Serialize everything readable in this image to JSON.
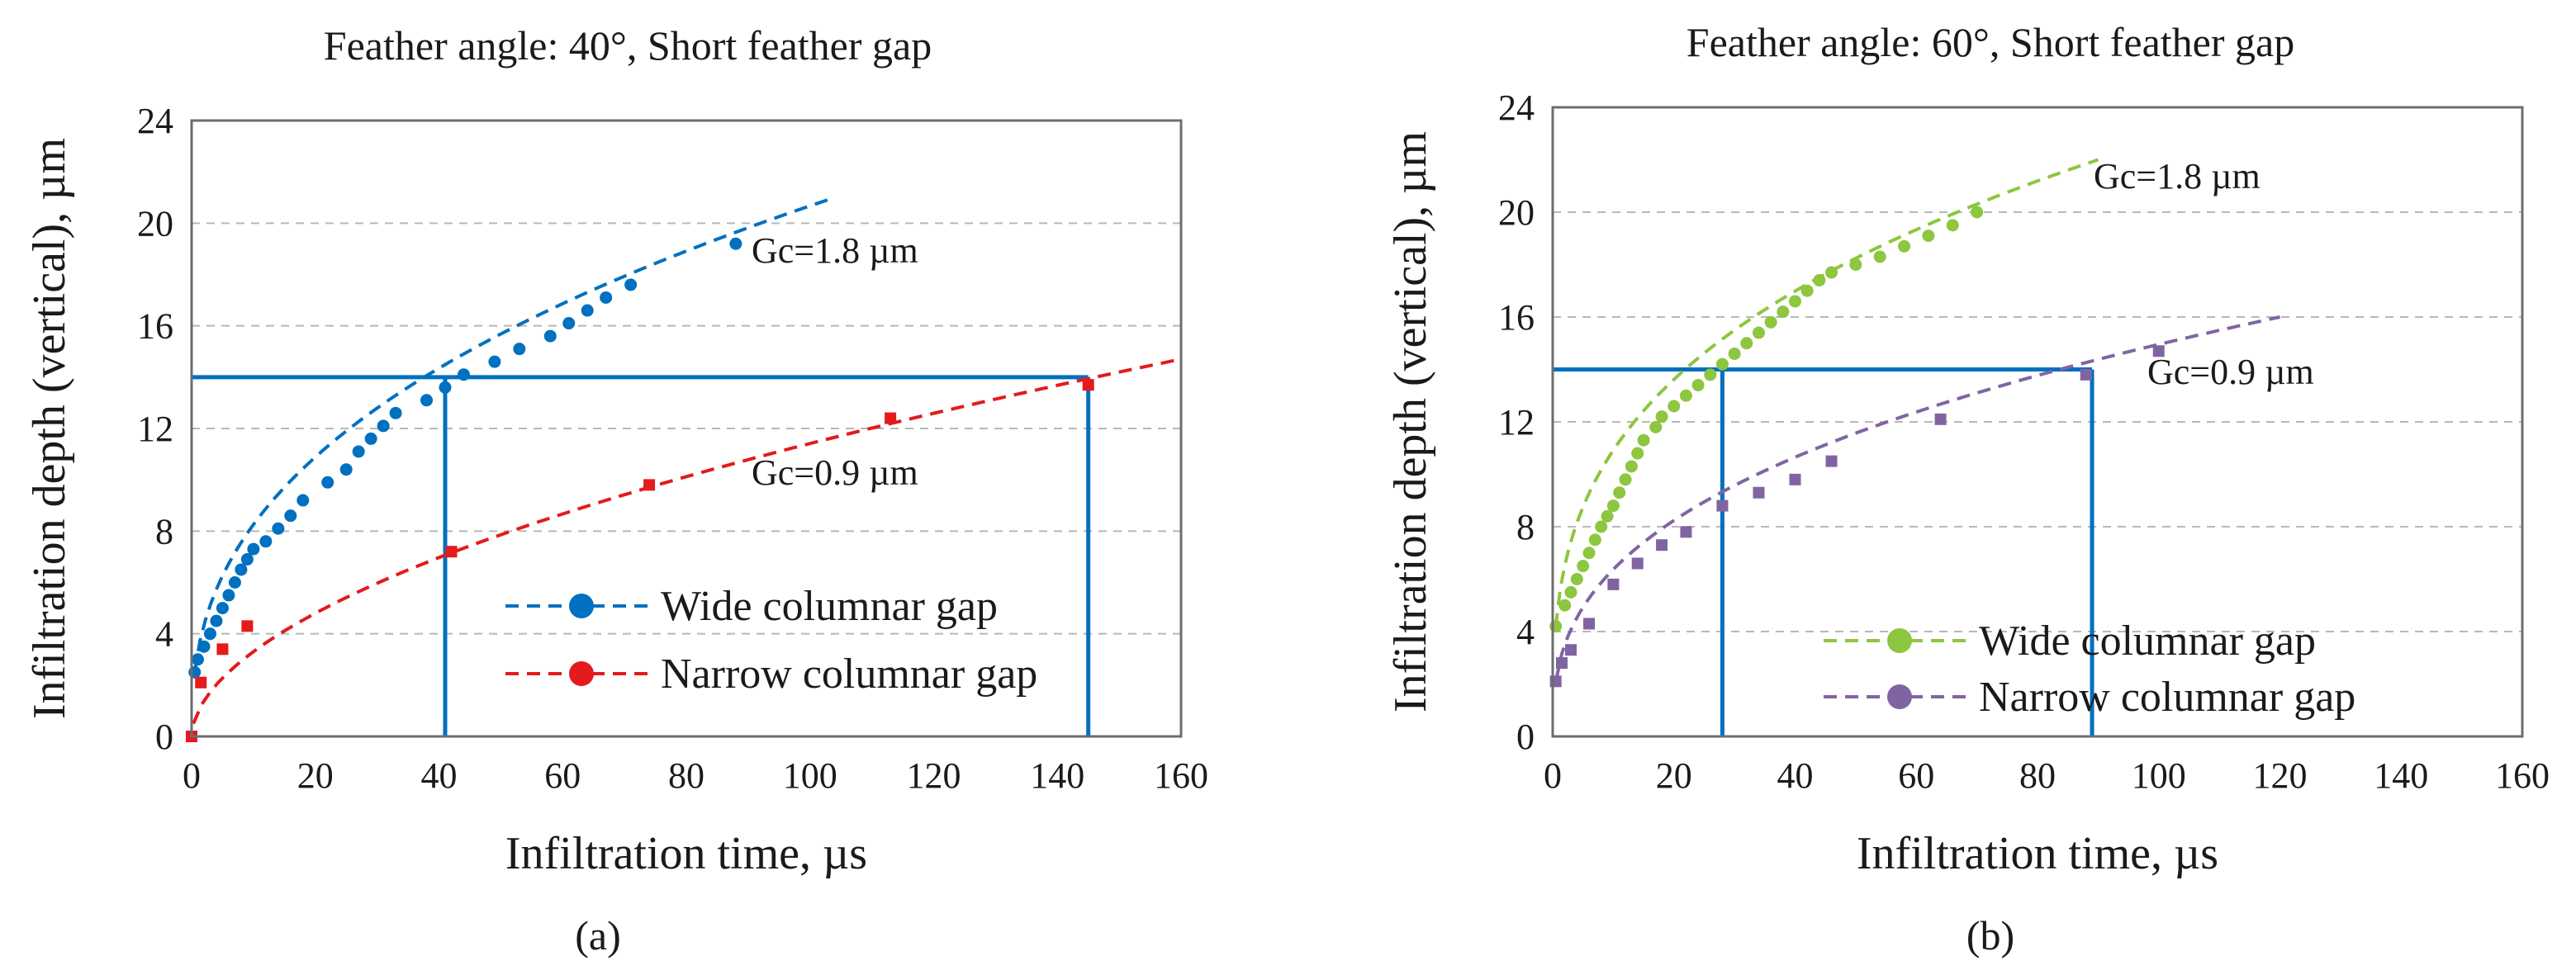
{
  "chart_data": [
    {
      "type": "scatter",
      "panel": "(a)",
      "title": "Feather angle: 40°, Short feather gap",
      "xlabel": "Infiltration time, µs",
      "ylabel": "Infiltration depth (vertical), µm",
      "xlim": [
        0,
        160
      ],
      "ylim": [
        0,
        24
      ],
      "xticks": [
        0,
        20,
        40,
        60,
        80,
        100,
        120,
        140,
        160
      ],
      "yticks": [
        0,
        4,
        8,
        12,
        16,
        20,
        24
      ],
      "grid": "horizontal dashed",
      "legend_position": "bottom-right",
      "series": [
        {
          "name": "Wide columnar gap",
          "color": "#0070c0",
          "marker": "circle",
          "points": [
            [
              0.5,
              2.5
            ],
            [
              1,
              3.0
            ],
            [
              2,
              3.5
            ],
            [
              3,
              4.0
            ],
            [
              4,
              4.5
            ],
            [
              5,
              5.0
            ],
            [
              6,
              5.5
            ],
            [
              7,
              6.0
            ],
            [
              8,
              6.5
            ],
            [
              9,
              6.9
            ],
            [
              10,
              7.3
            ],
            [
              12,
              7.6
            ],
            [
              14,
              8.1
            ],
            [
              16,
              8.6
            ],
            [
              18,
              9.2
            ],
            [
              22,
              9.9
            ],
            [
              25,
              10.4
            ],
            [
              27,
              11.1
            ],
            [
              29,
              11.6
            ],
            [
              31,
              12.1
            ],
            [
              33,
              12.6
            ],
            [
              38,
              13.1
            ],
            [
              41,
              13.6
            ],
            [
              44,
              14.1
            ],
            [
              49,
              14.6
            ],
            [
              53,
              15.1
            ],
            [
              58,
              15.6
            ],
            [
              61,
              16.1
            ],
            [
              64,
              16.6
            ],
            [
              67,
              17.1
            ],
            [
              71,
              17.6
            ],
            [
              88,
              19.2
            ]
          ],
          "fit": {
            "x_end": 104,
            "y_end": 21.0,
            "style": "dashed"
          }
        },
        {
          "name": "Narrow columnar gap",
          "color": "#e41a1c",
          "marker": "square",
          "points": [
            [
              0,
              0
            ],
            [
              1.5,
              2.1
            ],
            [
              5,
              3.4
            ],
            [
              9,
              4.3
            ],
            [
              42,
              7.2
            ],
            [
              74,
              9.8
            ],
            [
              113,
              12.4
            ],
            [
              145,
              13.7
            ]
          ],
          "fit": {
            "x_end": 160,
            "y_end": 14.7,
            "style": "dashed"
          }
        }
      ],
      "reference_lines": {
        "color": "#0070c0",
        "depth": 14,
        "time_wide": 41,
        "time_narrow": 145
      },
      "annotations": [
        {
          "text": "Gc=1.8 µm",
          "x": 97,
          "y": 18.0
        },
        {
          "text": "Gc=0.9 µm",
          "x": 97,
          "y": 9.5
        }
      ]
    },
    {
      "type": "scatter",
      "panel": "(b)",
      "title": "Feather angle: 60°, Short feather gap",
      "xlabel": "Infiltration time, µs",
      "ylabel": "Infiltration depth (vertical), µm",
      "xlim": [
        0,
        160
      ],
      "ylim": [
        0,
        24
      ],
      "xticks": [
        0,
        20,
        40,
        60,
        80,
        100,
        120,
        140,
        160
      ],
      "yticks": [
        0,
        4,
        8,
        12,
        16,
        20,
        24
      ],
      "grid": "horizontal dashed",
      "legend_position": "bottom-right",
      "series": [
        {
          "name": "Wide columnar gap",
          "color": "#8dc63f",
          "marker": "circle",
          "points": [
            [
              0.5,
              4.2
            ],
            [
              2,
              5.0
            ],
            [
              3,
              5.5
            ],
            [
              4,
              6.0
            ],
            [
              5,
              6.5
            ],
            [
              6,
              7.0
            ],
            [
              7,
              7.5
            ],
            [
              8,
              8.0
            ],
            [
              9,
              8.4
            ],
            [
              10,
              8.8
            ],
            [
              11,
              9.3
            ],
            [
              12,
              9.8
            ],
            [
              13,
              10.3
            ],
            [
              14,
              10.8
            ],
            [
              15,
              11.3
            ],
            [
              17,
              11.8
            ],
            [
              18,
              12.2
            ],
            [
              20,
              12.6
            ],
            [
              22,
              13.0
            ],
            [
              24,
              13.4
            ],
            [
              26,
              13.8
            ],
            [
              28,
              14.2
            ],
            [
              30,
              14.6
            ],
            [
              32,
              15.0
            ],
            [
              34,
              15.4
            ],
            [
              36,
              15.8
            ],
            [
              38,
              16.2
            ],
            [
              40,
              16.6
            ],
            [
              42,
              17.0
            ],
            [
              44,
              17.4
            ],
            [
              46,
              17.7
            ],
            [
              50,
              18.0
            ],
            [
              54,
              18.3
            ],
            [
              58,
              18.7
            ],
            [
              62,
              19.1
            ],
            [
              66,
              19.5
            ],
            [
              70,
              20.0
            ]
          ],
          "fit": {
            "x_end": 90,
            "y_end": 22.0,
            "style": "dashed"
          }
        },
        {
          "name": "Narrow columnar gap",
          "color": "#8064a2",
          "marker": "square",
          "points": [
            [
              0.5,
              2.1
            ],
            [
              1.5,
              2.8
            ],
            [
              3,
              3.3
            ],
            [
              6,
              4.3
            ],
            [
              10,
              5.8
            ],
            [
              14,
              6.6
            ],
            [
              18,
              7.3
            ],
            [
              22,
              7.8
            ],
            [
              28,
              8.8
            ],
            [
              34,
              9.3
            ],
            [
              40,
              9.8
            ],
            [
              46,
              10.5
            ],
            [
              64,
              12.1
            ],
            [
              88,
              13.8
            ],
            [
              100,
              14.7
            ]
          ],
          "fit": {
            "x_end": 120,
            "y_end": 16.0,
            "style": "dashed"
          }
        }
      ],
      "reference_lines": {
        "color": "#0070c0",
        "depth": 14,
        "time_wide": 28,
        "time_narrow": 89
      },
      "annotations": [
        {
          "text": "Gc=1.8 µm",
          "x": 92,
          "y": 20.8
        },
        {
          "text": "Gc=0.9 µm",
          "x": 100,
          "y": 13.2
        }
      ]
    }
  ]
}
